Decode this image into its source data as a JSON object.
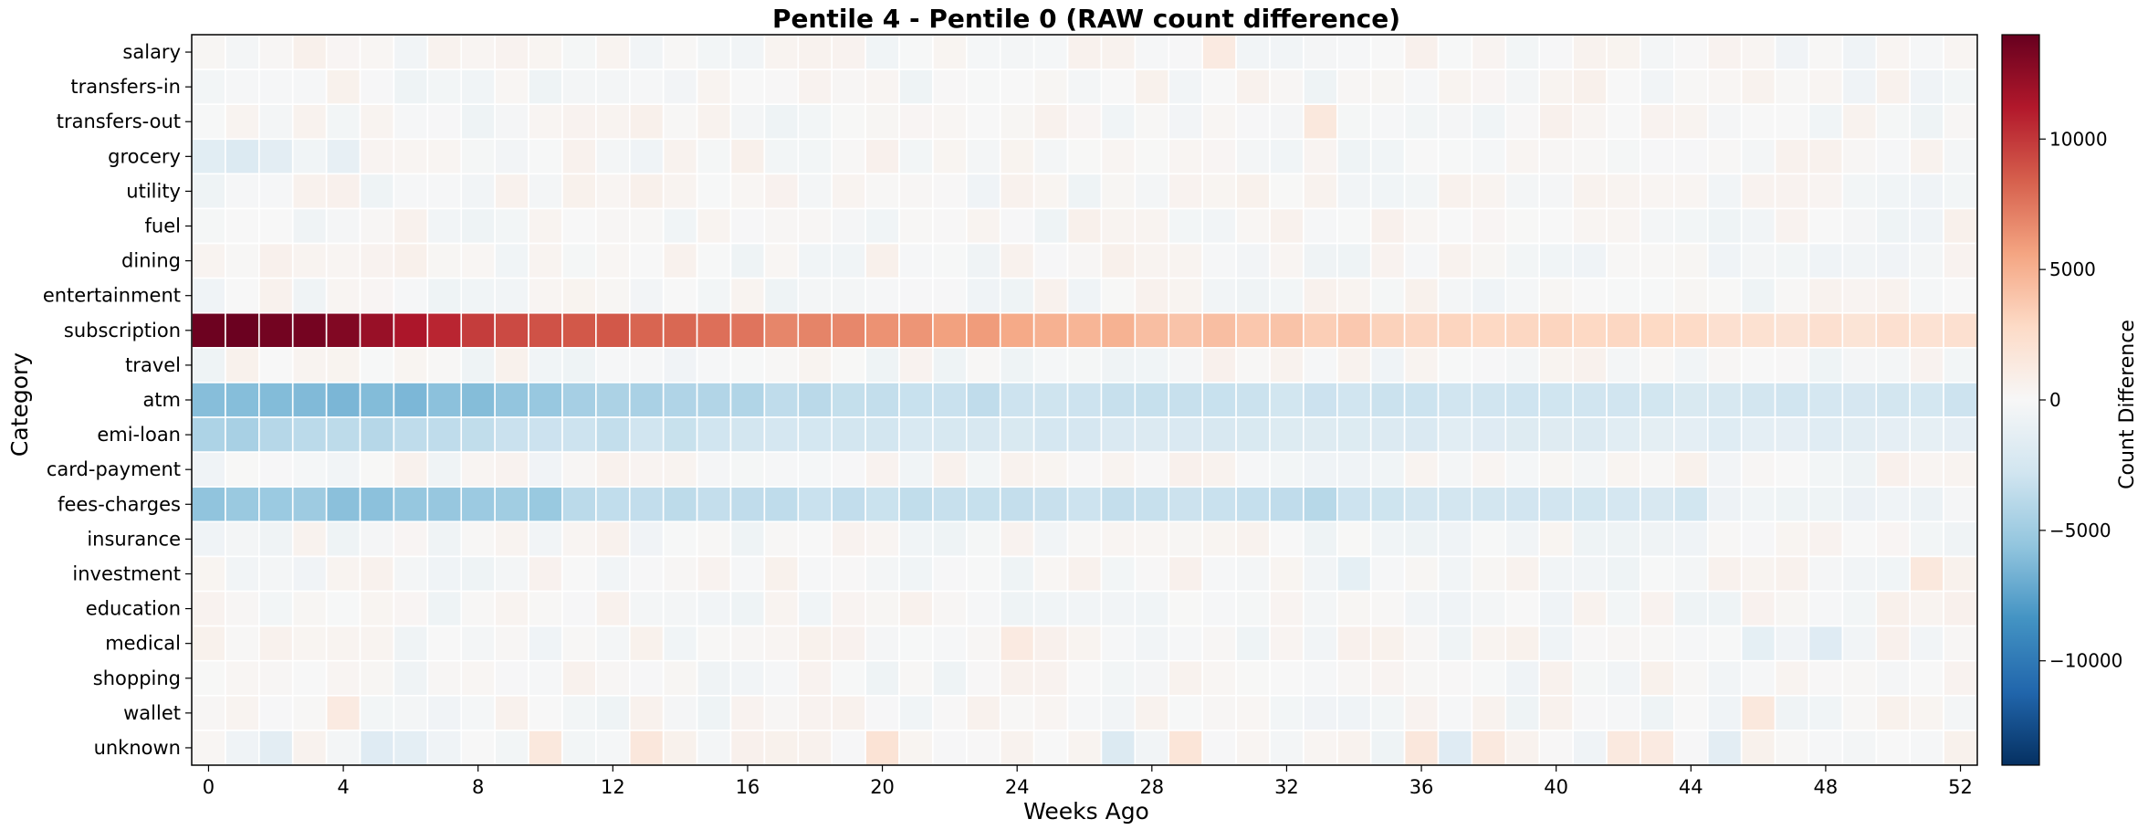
{
  "chart_data": {
    "type": "heatmap",
    "title": "Pentile 4 - Pentile 0 (RAW count difference)",
    "xlabel": "Weeks Ago",
    "ylabel": "Category",
    "colorbar_label": "Count Difference",
    "colormap": "RdBu_r",
    "vmin": -14000,
    "vmax": 14000,
    "colorbar_ticks": [
      10000,
      5000,
      0,
      -5000,
      -10000
    ],
    "colorbar_tick_labels": [
      "10000",
      "5000",
      "0",
      "−5000",
      "−10000"
    ],
    "x": [
      0,
      1,
      2,
      3,
      4,
      5,
      6,
      7,
      8,
      9,
      10,
      11,
      12,
      13,
      14,
      15,
      16,
      17,
      18,
      19,
      20,
      21,
      22,
      23,
      24,
      25,
      26,
      27,
      28,
      29,
      30,
      31,
      32,
      33,
      34,
      35,
      36,
      37,
      38,
      39,
      40,
      41,
      42,
      43,
      44,
      45,
      46,
      47,
      48,
      49,
      50,
      51,
      52
    ],
    "x_ticks": [
      0,
      4,
      8,
      12,
      16,
      20,
      24,
      28,
      32,
      36,
      40,
      44,
      48,
      52
    ],
    "categories": [
      "salary",
      "transfers-in",
      "transfers-out",
      "grocery",
      "utility",
      "fuel",
      "dining",
      "entertainment",
      "subscription",
      "travel",
      "atm",
      "emi-loan",
      "card-payment",
      "fees-charges",
      "insurance",
      "investment",
      "education",
      "medical",
      "shopping",
      "wallet",
      "unknown"
    ],
    "row_profiles": {
      "subscription": [
        {
          "x": 0,
          "v": 14000
        },
        {
          "x": 3,
          "v": 13500
        },
        {
          "x": 6,
          "v": 11500
        },
        {
          "x": 8,
          "v": 9500
        },
        {
          "x": 12,
          "v": 8500
        },
        {
          "x": 15,
          "v": 7500
        },
        {
          "x": 20,
          "v": 6500
        },
        {
          "x": 24,
          "v": 5500
        },
        {
          "x": 28,
          "v": 4500
        },
        {
          "x": 32,
          "v": 3800
        },
        {
          "x": 36,
          "v": 3200
        },
        {
          "x": 40,
          "v": 3000
        },
        {
          "x": 44,
          "v": 2700
        },
        {
          "x": 45,
          "v": 2000
        },
        {
          "x": 52,
          "v": 2300
        }
      ],
      "atm": [
        {
          "x": 0,
          "v": -5800
        },
        {
          "x": 2,
          "v": -6300
        },
        {
          "x": 4,
          "v": -6500
        },
        {
          "x": 7,
          "v": -6000
        },
        {
          "x": 10,
          "v": -5500
        },
        {
          "x": 11,
          "v": -4500
        },
        {
          "x": 14,
          "v": -4500
        },
        {
          "x": 17,
          "v": -3800
        },
        {
          "x": 22,
          "v": -3300
        },
        {
          "x": 30,
          "v": -3000
        },
        {
          "x": 40,
          "v": -2800
        },
        {
          "x": 44,
          "v": -2500
        },
        {
          "x": 52,
          "v": -2700
        }
      ],
      "emi-loan": [
        {
          "x": 0,
          "v": -4300
        },
        {
          "x": 1,
          "v": -4600
        },
        {
          "x": 3,
          "v": -4000
        },
        {
          "x": 10,
          "v": -3300
        },
        {
          "x": 16,
          "v": -2800
        },
        {
          "x": 20,
          "v": -2500
        },
        {
          "x": 30,
          "v": -2200
        },
        {
          "x": 40,
          "v": -1800
        },
        {
          "x": 52,
          "v": -1300
        }
      ],
      "fees-charges": [
        {
          "x": 0,
          "v": -5600
        },
        {
          "x": 3,
          "v": -5300
        },
        {
          "x": 4,
          "v": -6000
        },
        {
          "x": 7,
          "v": -5500
        },
        {
          "x": 10,
          "v": -5000
        },
        {
          "x": 11,
          "v": -3500
        },
        {
          "x": 20,
          "v": -3300
        },
        {
          "x": 30,
          "v": -3000
        },
        {
          "x": 33,
          "v": -4000
        },
        {
          "x": 34,
          "v": -2800
        },
        {
          "x": 44,
          "v": -2500
        },
        {
          "x": 45,
          "v": -800
        },
        {
          "x": 52,
          "v": -500
        }
      ]
    },
    "noise_amplitude": 1400,
    "cell_overrides": [
      {
        "row": "grocery",
        "x": 0,
        "v": -1600
      },
      {
        "row": "grocery",
        "x": 1,
        "v": -2000
      },
      {
        "row": "grocery",
        "x": 2,
        "v": -1500
      },
      {
        "row": "grocery",
        "x": 4,
        "v": -1200
      },
      {
        "row": "unknown",
        "x": 2,
        "v": -1500
      },
      {
        "row": "unknown",
        "x": 5,
        "v": -1800
      },
      {
        "row": "unknown",
        "x": 6,
        "v": -1400
      },
      {
        "row": "unknown",
        "x": 10,
        "v": 1500
      },
      {
        "row": "unknown",
        "x": 13,
        "v": 1600
      },
      {
        "row": "unknown",
        "x": 20,
        "v": 2000
      },
      {
        "row": "unknown",
        "x": 27,
        "v": -2000
      },
      {
        "row": "unknown",
        "x": 29,
        "v": 1800
      },
      {
        "row": "unknown",
        "x": 36,
        "v": 1600
      },
      {
        "row": "unknown",
        "x": 37,
        "v": -1800
      },
      {
        "row": "unknown",
        "x": 38,
        "v": 1400
      },
      {
        "row": "unknown",
        "x": 42,
        "v": 1400
      },
      {
        "row": "unknown",
        "x": 43,
        "v": 1300
      },
      {
        "row": "unknown",
        "x": 45,
        "v": -1500
      },
      {
        "row": "medical",
        "x": 46,
        "v": -1300
      },
      {
        "row": "medical",
        "x": 48,
        "v": -1800
      },
      {
        "row": "medical",
        "x": 24,
        "v": 1300
      },
      {
        "row": "investment",
        "x": 34,
        "v": -1300
      },
      {
        "row": "investment",
        "x": 51,
        "v": 1500
      },
      {
        "row": "transfers-out",
        "x": 33,
        "v": 1500
      },
      {
        "row": "salary",
        "x": 30,
        "v": 1300
      },
      {
        "row": "wallet",
        "x": 4,
        "v": 1300
      },
      {
        "row": "wallet",
        "x": 46,
        "v": 1500
      }
    ]
  }
}
